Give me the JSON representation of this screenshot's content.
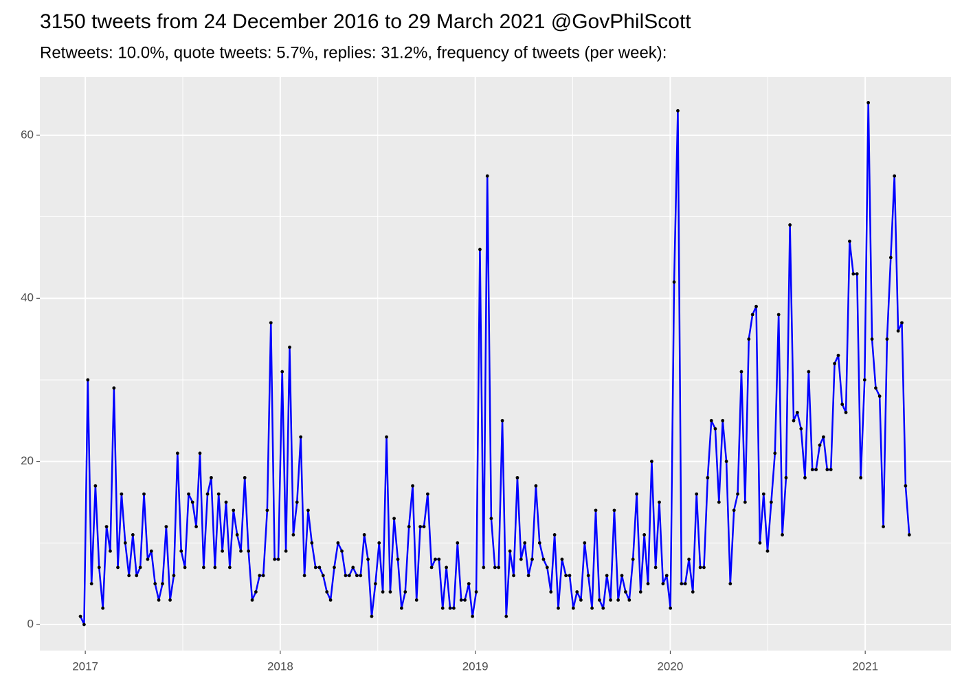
{
  "chart_data": {
    "type": "line",
    "title": "3150 tweets from 24 December 2016 to 29 March 2021 @GovPhilScott",
    "subtitle": "Retweets: 10.0%, quote tweets: 5.7%, replies: 31.2%, frequency of tweets (per week):",
    "color": "#0000ff",
    "point_color": "#000000",
    "grid": true,
    "xlim": [
      2016.767,
      2021.44
    ],
    "xticks": [
      2017,
      2018,
      2019,
      2020,
      2021
    ],
    "minor_xticks": [
      2017.5,
      2018.5,
      2019.5,
      2020.5
    ],
    "ylim": [
      -3.2,
      67.15
    ],
    "yticks": [
      0,
      20,
      40,
      60
    ],
    "minor_yticks": [
      10,
      30,
      50
    ],
    "x": [
      2016.975,
      2016.994,
      2017.013,
      2017.032,
      2017.052,
      2017.071,
      2017.09,
      2017.109,
      2017.128,
      2017.147,
      2017.167,
      2017.186,
      2017.205,
      2017.224,
      2017.244,
      2017.263,
      2017.282,
      2017.301,
      2017.32,
      2017.339,
      2017.358,
      2017.377,
      2017.396,
      2017.415,
      2017.435,
      2017.454,
      2017.473,
      2017.492,
      2017.511,
      2017.53,
      2017.55,
      2017.569,
      2017.588,
      2017.607,
      2017.627,
      2017.646,
      2017.665,
      2017.684,
      2017.703,
      2017.722,
      2017.741,
      2017.76,
      2017.779,
      2017.798,
      2017.818,
      2017.837,
      2017.856,
      2017.875,
      2017.894,
      2017.913,
      2017.933,
      2017.952,
      2017.971,
      2017.99,
      2018.01,
      2018.029,
      2018.048,
      2018.067,
      2018.086,
      2018.105,
      2018.124,
      2018.143,
      2018.162,
      2018.181,
      2018.201,
      2018.22,
      2018.239,
      2018.258,
      2018.277,
      2018.296,
      2018.316,
      2018.335,
      2018.354,
      2018.373,
      2018.393,
      2018.412,
      2018.431,
      2018.45,
      2018.469,
      2018.488,
      2018.507,
      2018.526,
      2018.545,
      2018.564,
      2018.584,
      2018.603,
      2018.622,
      2018.641,
      2018.66,
      2018.679,
      2018.699,
      2018.718,
      2018.737,
      2018.756,
      2018.776,
      2018.795,
      2018.814,
      2018.833,
      2018.852,
      2018.871,
      2018.89,
      2018.909,
      2018.928,
      2018.947,
      2018.967,
      2018.986,
      2019.005,
      2019.024,
      2019.043,
      2019.062,
      2019.082,
      2019.101,
      2019.12,
      2019.139,
      2019.159,
      2019.178,
      2019.197,
      2019.216,
      2019.235,
      2019.254,
      2019.273,
      2019.292,
      2019.311,
      2019.33,
      2019.35,
      2019.369,
      2019.388,
      2019.407,
      2019.426,
      2019.445,
      2019.465,
      2019.484,
      2019.503,
      2019.522,
      2019.542,
      2019.561,
      2019.58,
      2019.599,
      2019.618,
      2019.637,
      2019.656,
      2019.675,
      2019.694,
      2019.713,
      2019.733,
      2019.752,
      2019.771,
      2019.79,
      2019.809,
      2019.828,
      2019.848,
      2019.867,
      2019.886,
      2019.905,
      2019.925,
      2019.944,
      2019.963,
      2019.982,
      2020.001,
      2020.02,
      2020.039,
      2020.058,
      2020.077,
      2020.096,
      2020.116,
      2020.135,
      2020.154,
      2020.173,
      2020.192,
      2020.211,
      2020.231,
      2020.25,
      2020.269,
      2020.288,
      2020.308,
      2020.327,
      2020.346,
      2020.365,
      2020.384,
      2020.403,
      2020.422,
      2020.441,
      2020.46,
      2020.479,
      2020.499,
      2020.518,
      2020.537,
      2020.556,
      2020.575,
      2020.594,
      2020.614,
      2020.633,
      2020.652,
      2020.671,
      2020.691,
      2020.71,
      2020.729,
      2020.748,
      2020.767,
      2020.786,
      2020.805,
      2020.824,
      2020.843,
      2020.862,
      2020.882,
      2020.901,
      2020.92,
      2020.939,
      2020.958,
      2020.977,
      2020.997,
      2021.016,
      2021.035,
      2021.054,
      2021.074,
      2021.093,
      2021.112,
      2021.131,
      2021.15,
      2021.169,
      2021.188,
      2021.207,
      2021.226
    ],
    "values": [
      1,
      0,
      30,
      5,
      17,
      7,
      2,
      12,
      9,
      29,
      7,
      16,
      10,
      6,
      11,
      6,
      7,
      16,
      8,
      9,
      5,
      3,
      5,
      12,
      3,
      6,
      21,
      9,
      7,
      16,
      15,
      12,
      21,
      7,
      16,
      18,
      7,
      16,
      9,
      15,
      7,
      14,
      11,
      9,
      18,
      9,
      3,
      4,
      6,
      6,
      14,
      37,
      8,
      8,
      31,
      9,
      34,
      11,
      15,
      23,
      6,
      14,
      10,
      7,
      7,
      6,
      4,
      3,
      7,
      10,
      9,
      6,
      6,
      7,
      6,
      6,
      11,
      8,
      1,
      5,
      10,
      4,
      23,
      4,
      13,
      8,
      2,
      4,
      12,
      17,
      3,
      12,
      12,
      16,
      7,
      8,
      8,
      2,
      7,
      2,
      2,
      10,
      3,
      3,
      5,
      1,
      4,
      46,
      7,
      55,
      13,
      7,
      7,
      25,
      1,
      9,
      6,
      18,
      8,
      10,
      6,
      8,
      17,
      10,
      8,
      7,
      4,
      11,
      2,
      8,
      6,
      6,
      2,
      4,
      3,
      10,
      6,
      2,
      14,
      3,
      2,
      6,
      3,
      14,
      3,
      6,
      4,
      3,
      8,
      16,
      4,
      11,
      5,
      20,
      7,
      15,
      5,
      6,
      2,
      42,
      63,
      5,
      5,
      8,
      4,
      16,
      7,
      7,
      18,
      25,
      24,
      15,
      25,
      20,
      5,
      14,
      16,
      31,
      15,
      35,
      38,
      39,
      10,
      16,
      9,
      15,
      21,
      38,
      11,
      18,
      49,
      25,
      26,
      24,
      18,
      31,
      19,
      19,
      22,
      23,
      19,
      19,
      32,
      33,
      27,
      26,
      47,
      43,
      43,
      18,
      30,
      64,
      35,
      29,
      28,
      12,
      35,
      45,
      55,
      36,
      37,
      17,
      11
    ]
  }
}
